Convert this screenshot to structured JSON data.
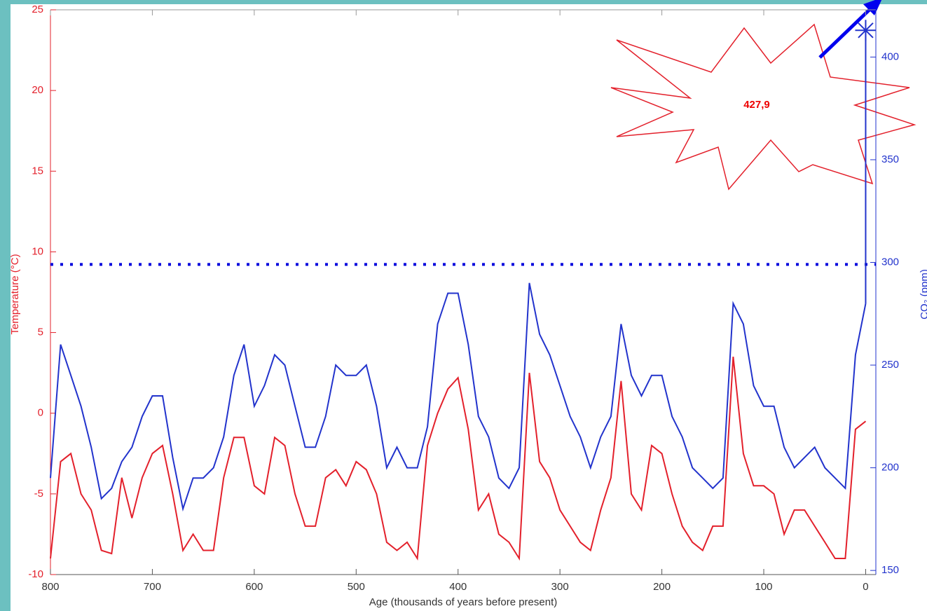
{
  "chart_data": {
    "type": "line",
    "xlabel": "Age (thousands of years before present)",
    "ylabel": "Temperature (°C)",
    "y2label": "CO₂ (ppm)",
    "annotation": "427,9",
    "x": [
      800,
      790,
      780,
      770,
      760,
      750,
      740,
      730,
      720,
      710,
      700,
      690,
      680,
      670,
      660,
      650,
      640,
      630,
      620,
      610,
      600,
      590,
      580,
      570,
      560,
      550,
      540,
      530,
      520,
      510,
      500,
      490,
      480,
      470,
      460,
      450,
      440,
      430,
      420,
      410,
      400,
      390,
      380,
      370,
      360,
      350,
      340,
      330,
      320,
      310,
      300,
      290,
      280,
      270,
      260,
      250,
      240,
      230,
      220,
      210,
      200,
      190,
      180,
      170,
      160,
      150,
      140,
      130,
      120,
      110,
      100,
      90,
      80,
      70,
      60,
      50,
      40,
      30,
      20,
      10,
      0
    ],
    "series": [
      {
        "name": "Temperature (°C)",
        "color": "#e3202b",
        "axis": "y",
        "values": [
          -9,
          -3,
          -2.5,
          -5,
          -6,
          -8.5,
          -8.7,
          -4,
          -6.5,
          -4,
          -2.5,
          -2,
          -5,
          -8.5,
          -7.5,
          -8.5,
          -8.5,
          -4,
          -1.5,
          -1.5,
          -4.5,
          -5,
          -1.5,
          -2,
          -5,
          -7,
          -7,
          -4,
          -3.5,
          -4.5,
          -3,
          -3.5,
          -5,
          -8,
          -8.5,
          -8,
          -9,
          -2,
          0,
          1.5,
          2.2,
          -1,
          -6,
          -5,
          -7.5,
          -8,
          -9,
          2.5,
          -3,
          -4,
          -6,
          -7,
          -8,
          -8.5,
          -6,
          -4,
          2,
          -5,
          -6,
          -2,
          -2.5,
          -5,
          -7,
          -8,
          -8.5,
          -7,
          -7,
          3.5,
          -2.5,
          -4.5,
          -4.5,
          -5,
          -7.5,
          -6,
          -6,
          -7,
          -8,
          -9,
          -9,
          -1,
          -0.5
        ]
      },
      {
        "name": "CO₂ (ppm)",
        "color": "#2233cc",
        "axis": "y2",
        "values": [
          195,
          260,
          245,
          230,
          210,
          185,
          190,
          203,
          210,
          225,
          235,
          235,
          205,
          180,
          195,
          195,
          200,
          215,
          245,
          260,
          230,
          240,
          255,
          250,
          230,
          210,
          210,
          225,
          250,
          245,
          245,
          250,
          230,
          200,
          210,
          200,
          200,
          220,
          270,
          285,
          285,
          260,
          225,
          215,
          195,
          190,
          200,
          290,
          265,
          255,
          240,
          225,
          215,
          200,
          215,
          225,
          270,
          245,
          235,
          245,
          245,
          225,
          215,
          200,
          195,
          190,
          195,
          280,
          270,
          240,
          230,
          230,
          210,
          200,
          205,
          210,
          200,
          195,
          190,
          255,
          280
        ]
      }
    ],
    "current": {
      "x": 0,
      "value": 413,
      "color": "#2233cc"
    },
    "reference_line": {
      "value": 299,
      "axis": "y2",
      "color": "#0000dd"
    },
    "xlim": [
      800,
      -10
    ],
    "xticks": [
      800,
      700,
      600,
      500,
      400,
      300,
      200,
      100,
      0
    ],
    "ylim": [
      -10,
      25
    ],
    "yticks": [
      -10,
      -5,
      0,
      5,
      10,
      15,
      20,
      25
    ],
    "y2lim": [
      148,
      423
    ],
    "y2ticks": [
      150,
      200,
      250,
      300,
      350,
      400
    ]
  }
}
